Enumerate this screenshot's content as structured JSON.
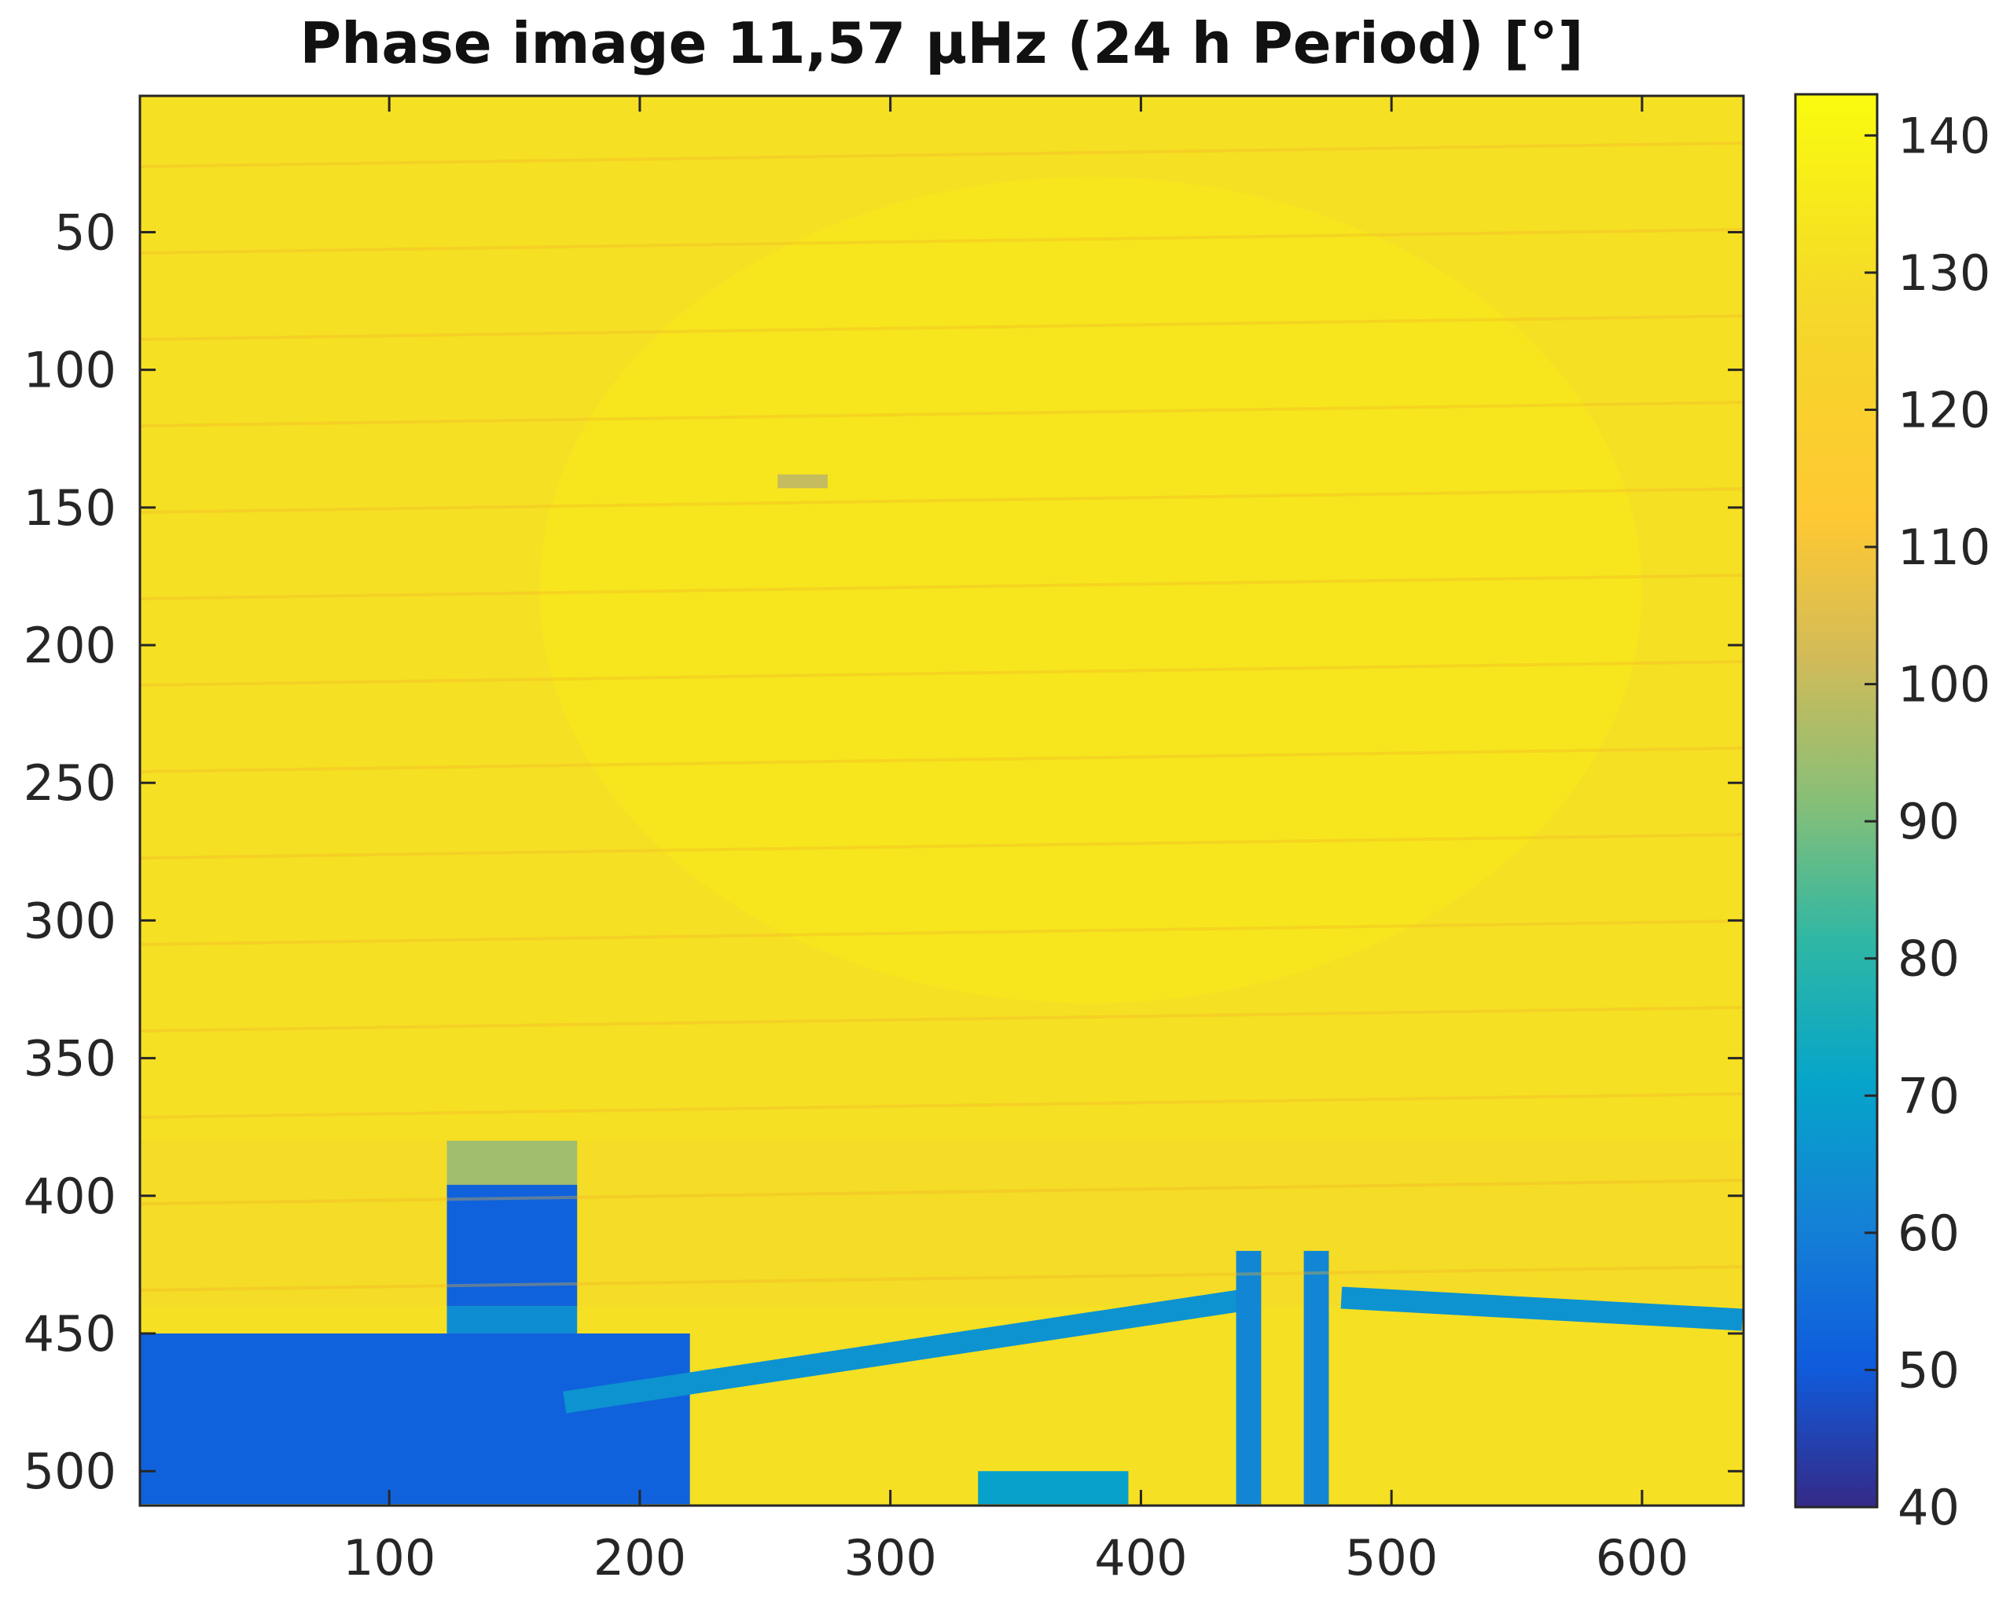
{
  "chart_data": {
    "type": "heatmap",
    "title": "Phase image 11,57 µHz (24 h Period) [°]",
    "xlabel": "",
    "ylabel": "",
    "xlim": [
      0.5,
      640.5
    ],
    "ylim": [
      512.5,
      0.5
    ],
    "y_axis_direction": "reversed (row 1 at top)",
    "x_ticks": [
      100,
      200,
      300,
      400,
      500,
      600
    ],
    "y_ticks": [
      50,
      100,
      150,
      200,
      250,
      300,
      350,
      400,
      450,
      500
    ],
    "colormap": "parula",
    "colorbar": {
      "position": "right",
      "range": [
        40,
        143
      ],
      "ticks": [
        40,
        50,
        60,
        70,
        80,
        90,
        100,
        110,
        120,
        130,
        140
      ]
    },
    "background_value": 131,
    "regions": [
      {
        "feature": "bright wall area",
        "x_range": [
          160,
          600
        ],
        "y_range": [
          30,
          330
        ],
        "value": 136
      },
      {
        "feature": "darker brick band",
        "x_range": [
          0,
          640
        ],
        "y_range": [
          380,
          440
        ],
        "value": 128
      },
      {
        "feature": "small dark speck",
        "x_range": [
          255,
          275
        ],
        "y_range": [
          138,
          143
        ],
        "value": 100
      },
      {
        "feature": "box cap",
        "x_range": [
          123,
          175
        ],
        "y_range": [
          380,
          396
        ],
        "value": 95
      },
      {
        "feature": "box body",
        "x_range": [
          123,
          175
        ],
        "y_range": [
          396,
          440
        ],
        "value": 52
      },
      {
        "feature": "box lower part",
        "x_range": [
          123,
          175
        ],
        "y_range": [
          440,
          470
        ],
        "value": 64
      },
      {
        "feature": "bottom-left dark object",
        "x_range": [
          0,
          220
        ],
        "y_range": [
          450,
          512
        ],
        "value": 52
      },
      {
        "feature": "diagonal pipe",
        "x_range": [
          170,
          440
        ],
        "y_range": [
          438,
          475
        ],
        "value": 66
      },
      {
        "feature": "right diagonal pipe",
        "x_range": [
          480,
          640
        ],
        "y_range": [
          437,
          445
        ],
        "value": 66
      },
      {
        "feature": "left vertical post",
        "x_range": [
          438,
          448
        ],
        "y_range": [
          420,
          512
        ],
        "value": 62
      },
      {
        "feature": "right vertical post",
        "x_range": [
          465,
          475
        ],
        "y_range": [
          420,
          512
        ],
        "value": 62
      },
      {
        "feature": "bottom center object",
        "x_range": [
          335,
          395
        ],
        "y_range": [
          500,
          512
        ],
        "value": 70
      }
    ]
  }
}
